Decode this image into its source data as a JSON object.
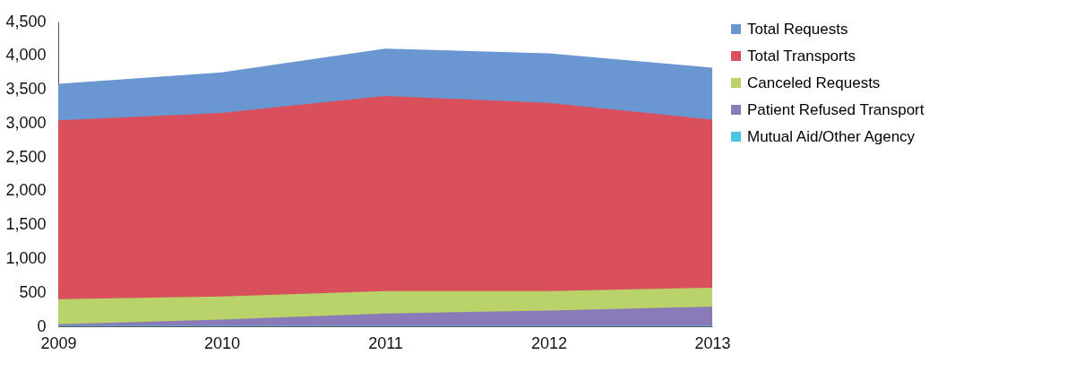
{
  "chart_data": {
    "type": "area",
    "categories": [
      "2009",
      "2010",
      "2011",
      "2012",
      "2013"
    ],
    "series": [
      {
        "name": "Total Requests",
        "color": "#6a96d2",
        "values": [
          3580,
          3750,
          4100,
          4030,
          3820
        ]
      },
      {
        "name": "Total Transports",
        "color": "#d9505c",
        "values": [
          3040,
          3150,
          3400,
          3300,
          3050
        ]
      },
      {
        "name": "Canceled Requests",
        "color": "#b9d26a",
        "values": [
          400,
          440,
          520,
          520,
          570
        ]
      },
      {
        "name": "Patient Refused Transport",
        "color": "#8b7ab8",
        "values": [
          30,
          100,
          190,
          230,
          290
        ]
      },
      {
        "name": "Mutual Aid/Other Agency",
        "color": "#4bc5e0",
        "values": [
          10,
          10,
          10,
          10,
          10
        ]
      }
    ],
    "ylim": [
      0,
      4500
    ],
    "yticks": [
      0,
      500,
      {
        "value": 1000,
        "label": "1,000"
      },
      {
        "value": 1500,
        "label": "1,500"
      },
      {
        "value": 2000,
        "label": "2,000"
      },
      {
        "value": 2500,
        "label": "2,500"
      },
      {
        "value": 3000,
        "label": "3,000"
      },
      {
        "value": 3500,
        "label": "3,500"
      },
      {
        "value": 4000,
        "label": "4,000"
      },
      {
        "value": 4500,
        "label": "4,500"
      }
    ],
    "grid": false,
    "legend": "right"
  }
}
